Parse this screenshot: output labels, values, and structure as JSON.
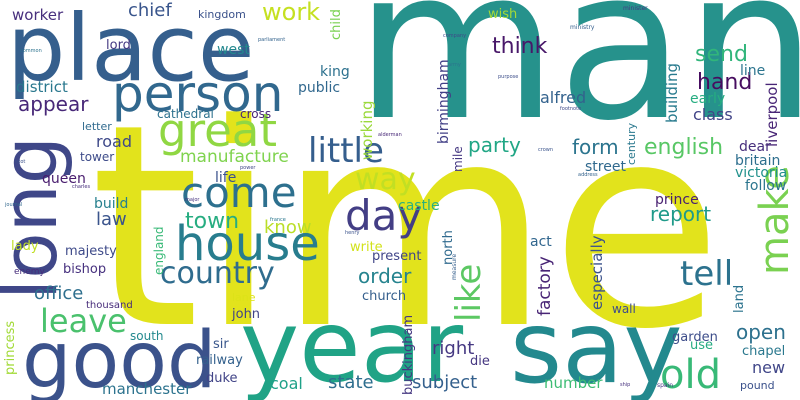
{
  "words": [
    {
      "text": "time",
      "color": "#e2e31c",
      "vertical": false
    },
    {
      "text": "man",
      "color": "#26928c",
      "vertical": false
    },
    {
      "text": "place",
      "color": "#355f8d",
      "vertical": false
    },
    {
      "text": "year",
      "color": "#20a386",
      "vertical": false
    },
    {
      "text": "say",
      "color": "#23898e",
      "vertical": false
    },
    {
      "text": "long",
      "color": "#3f4788",
      "vertical": true
    },
    {
      "text": "good",
      "color": "#3b528b",
      "vertical": false
    },
    {
      "text": "person",
      "color": "#31688e",
      "vertical": false
    },
    {
      "text": "house",
      "color": "#287d8e",
      "vertical": false
    },
    {
      "text": "great",
      "color": "#90d743",
      "vertical": false
    },
    {
      "text": "come",
      "color": "#2d708e",
      "vertical": false
    },
    {
      "text": "country",
      "color": "#2f6c8e",
      "vertical": false
    },
    {
      "text": "day",
      "color": "#433e85",
      "vertical": false
    },
    {
      "text": "make",
      "color": "#7ad151",
      "vertical": true
    },
    {
      "text": "old",
      "color": "#38b977",
      "vertical": false
    },
    {
      "text": "little",
      "color": "#355e8d",
      "vertical": false
    },
    {
      "text": "leave",
      "color": "#4ac16d",
      "vertical": false
    },
    {
      "text": "tell",
      "color": "#2c728e",
      "vertical": false
    },
    {
      "text": "like",
      "color": "#5cc863",
      "vertical": true
    },
    {
      "text": "way",
      "color": "#c2df23",
      "vertical": false
    },
    {
      "text": "work",
      "color": "#c5e021",
      "vertical": false
    },
    {
      "text": "town",
      "color": "#27ad81",
      "vertical": false
    },
    {
      "text": "think",
      "color": "#481769",
      "vertical": false
    },
    {
      "text": "send",
      "color": "#31b57b",
      "vertical": false
    },
    {
      "text": "hand",
      "color": "#470d60",
      "vertical": false
    },
    {
      "text": "office",
      "color": "#2e6f8e",
      "vertical": false
    },
    {
      "text": "english",
      "color": "#58c765",
      "vertical": false
    },
    {
      "text": "appear",
      "color": "#482878",
      "vertical": false
    },
    {
      "text": "order",
      "color": "#25838e",
      "vertical": false
    },
    {
      "text": "report",
      "color": "#1f9a8a",
      "vertical": false
    },
    {
      "text": "form",
      "color": "#2b748e",
      "vertical": false
    },
    {
      "text": "party",
      "color": "#21a685",
      "vertical": false
    },
    {
      "text": "open",
      "color": "#2d718e",
      "vertical": false
    },
    {
      "text": "manufacture",
      "color": "#7fd34e",
      "vertical": false
    },
    {
      "text": "know",
      "color": "#bade28",
      "vertical": false
    },
    {
      "text": "chief",
      "color": "#39558c",
      "vertical": false
    },
    {
      "text": "right",
      "color": "#453882",
      "vertical": false
    },
    {
      "text": "subject",
      "color": "#34608d",
      "vertical": false
    },
    {
      "text": "state",
      "color": "#2e6e8e",
      "vertical": false
    },
    {
      "text": "worker",
      "color": "#472f7d",
      "vertical": false
    },
    {
      "text": "manchester",
      "color": "#2c738e",
      "vertical": false
    },
    {
      "text": "class",
      "color": "#414487",
      "vertical": false
    },
    {
      "text": "alfred",
      "color": "#33628d",
      "vertical": false
    },
    {
      "text": "factory",
      "color": "#482475",
      "vertical": true
    },
    {
      "text": "especially",
      "color": "#3b528b",
      "vertical": true
    },
    {
      "text": "road",
      "color": "#3e4989",
      "vertical": false
    },
    {
      "text": "district",
      "color": "#2a788e",
      "vertical": false
    },
    {
      "text": "new",
      "color": "#404688",
      "vertical": false
    },
    {
      "text": "building",
      "color": "#297b8e",
      "vertical": true
    },
    {
      "text": "coal",
      "color": "#1fa188",
      "vertical": false
    },
    {
      "text": "number",
      "color": "#3dbc74",
      "vertical": false
    },
    {
      "text": "law",
      "color": "#3a548c",
      "vertical": false
    },
    {
      "text": "lord",
      "color": "#443983",
      "vertical": false
    },
    {
      "text": "street",
      "color": "#30698e",
      "vertical": false
    },
    {
      "text": "prince",
      "color": "#482071",
      "vertical": false
    },
    {
      "text": "west",
      "color": "#23888e",
      "vertical": false
    },
    {
      "text": "build",
      "color": "#27808e",
      "vertical": false
    },
    {
      "text": "queen",
      "color": "#481c6e",
      "vertical": false
    },
    {
      "text": "life",
      "color": "#3b518b",
      "vertical": false
    },
    {
      "text": "castle",
      "color": "#2ab07f",
      "vertical": false
    },
    {
      "text": "king",
      "color": "#2d718e",
      "vertical": false
    },
    {
      "text": "public",
      "color": "#31688e",
      "vertical": false
    },
    {
      "text": "working",
      "color": "#9bd93c",
      "vertical": true
    },
    {
      "text": "birmingham",
      "color": "#424086",
      "vertical": true
    },
    {
      "text": "line",
      "color": "#2b748e",
      "vertical": false
    },
    {
      "text": "early",
      "color": "#26ad81",
      "vertical": false
    },
    {
      "text": "liverpool",
      "color": "#482576",
      "vertical": true
    },
    {
      "text": "dear",
      "color": "#472e7c",
      "vertical": false
    },
    {
      "text": "britain",
      "color": "#2e6f8e",
      "vertical": false
    },
    {
      "text": "victoria",
      "color": "#21918c",
      "vertical": false
    },
    {
      "text": "follow",
      "color": "#2b758e",
      "vertical": false
    },
    {
      "text": "present",
      "color": "#404588",
      "vertical": false
    },
    {
      "text": "write",
      "color": "#d2e21b",
      "vertical": false
    },
    {
      "text": "act",
      "color": "#31668e",
      "vertical": false
    },
    {
      "text": "north",
      "color": "#306a8e",
      "vertical": true
    },
    {
      "text": "church",
      "color": "#355f8d",
      "vertical": false
    },
    {
      "text": "majesty",
      "color": "#3e4a89",
      "vertical": false
    },
    {
      "text": "bishop",
      "color": "#46307e",
      "vertical": false
    },
    {
      "text": "lady",
      "color": "#c0df25",
      "vertical": false
    },
    {
      "text": "england",
      "color": "#38b977",
      "vertical": true
    },
    {
      "text": "buckingham",
      "color": "#453781",
      "vertical": true
    },
    {
      "text": "john",
      "color": "#414487",
      "vertical": false
    },
    {
      "text": "sir",
      "color": "#39568c",
      "vertical": false
    },
    {
      "text": "railway",
      "color": "#34618d",
      "vertical": false
    },
    {
      "text": "duke",
      "color": "#414487",
      "vertical": false
    },
    {
      "text": "south",
      "color": "#23898e",
      "vertical": false
    },
    {
      "text": "princess",
      "color": "#a2da37",
      "vertical": true
    },
    {
      "text": "die",
      "color": "#453781",
      "vertical": false
    },
    {
      "text": "use",
      "color": "#25ab82",
      "vertical": false
    },
    {
      "text": "garden",
      "color": "#3d4d8a",
      "vertical": false
    },
    {
      "text": "chapel",
      "color": "#2a788e",
      "vertical": false
    },
    {
      "text": "land",
      "color": "#2c738e",
      "vertical": true
    },
    {
      "text": "pound",
      "color": "#3b518b",
      "vertical": false
    },
    {
      "text": "wall",
      "color": "#3e4c8a",
      "vertical": false
    },
    {
      "text": "cathedral",
      "color": "#2d718e",
      "vertical": false
    },
    {
      "text": "cross",
      "color": "#482576",
      "vertical": false
    },
    {
      "text": "tower",
      "color": "#3e4c8a",
      "vertical": false
    },
    {
      "text": "letter",
      "color": "#306a8e",
      "vertical": false
    },
    {
      "text": "kingdom",
      "color": "#3b528b",
      "vertical": false
    },
    {
      "text": "wish",
      "color": "#a5db36",
      "vertical": false
    },
    {
      "text": "child",
      "color": "#7ad151",
      "vertical": true
    },
    {
      "text": "mile",
      "color": "#453882",
      "vertical": true
    },
    {
      "text": "century",
      "color": "#2a788e",
      "vertical": true
    },
    {
      "text": "lane",
      "color": "#dde318",
      "vertical": false
    },
    {
      "text": "thousand",
      "color": "#472c7a",
      "vertical": false
    },
    {
      "text": "enemy",
      "color": "#472d7b",
      "vertical": false
    },
    {
      "text": "ministry",
      "color": "#355f8d",
      "vertical": false
    },
    {
      "text": "minister",
      "color": "#443a83",
      "vertical": false
    },
    {
      "text": "parliament",
      "color": "#33638d",
      "vertical": false
    },
    {
      "text": "measure",
      "color": "#355f8d",
      "vertical": true
    },
    {
      "text": "henry",
      "color": "#3b528b",
      "vertical": false
    },
    {
      "text": "power",
      "color": "#404688",
      "vertical": false
    },
    {
      "text": "company",
      "color": "#3e4a89",
      "vertical": false
    },
    {
      "text": "army",
      "color": "#2b758e",
      "vertical": false
    },
    {
      "text": "crown",
      "color": "#3a548c",
      "vertical": false
    },
    {
      "text": "address",
      "color": "#33638d",
      "vertical": false
    },
    {
      "text": "spain",
      "color": "#443983",
      "vertical": false
    },
    {
      "text": "ship",
      "color": "#46307e",
      "vertical": false
    },
    {
      "text": "journal",
      "color": "#31688e",
      "vertical": false
    },
    {
      "text": "scot",
      "color": "#3b528b",
      "vertical": false
    },
    {
      "text": "footnote",
      "color": "#3e4989",
      "vertical": false
    },
    {
      "text": "alderman",
      "color": "#482878",
      "vertical": false
    },
    {
      "text": "france",
      "color": "#2a778e",
      "vertical": false
    },
    {
      "text": "charles",
      "color": "#472f7d",
      "vertical": false
    },
    {
      "text": "common",
      "color": "#2c728e",
      "vertical": false
    },
    {
      "text": "purpose",
      "color": "#3d4e8a",
      "vertical": false
    },
    {
      "text": "major",
      "color": "#46337f",
      "vertical": false
    }
  ]
}
